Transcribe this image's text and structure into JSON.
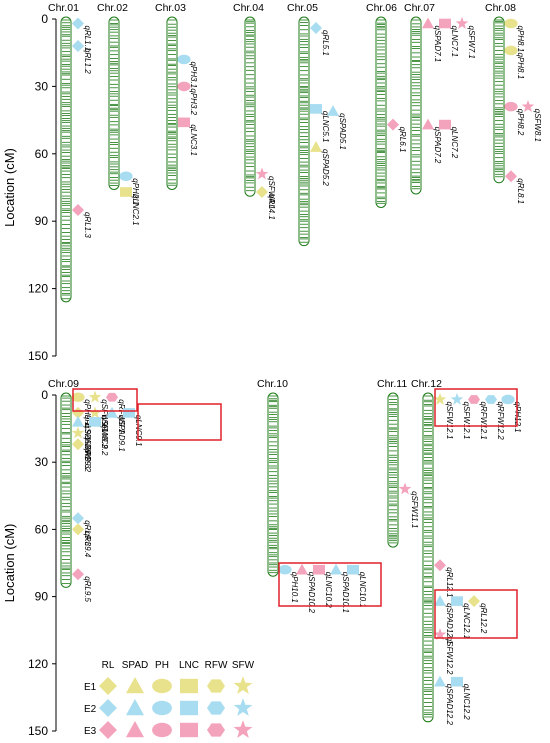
{
  "ylabel": "Location (cM)",
  "yticks": [
    0,
    30,
    60,
    90,
    120,
    150
  ],
  "colors": {
    "E1": "#e8e28c",
    "E2": "#a8dcf0",
    "E3": "#f4a3bc",
    "chromosome_band": "#1c7a16",
    "highlight_box": "#e0202a"
  },
  "legend": {
    "columns": [
      "RL",
      "SPAD",
      "PH",
      "LNC",
      "RFW",
      "SFW"
    ],
    "rows": [
      "E1",
      "E2",
      "E3"
    ],
    "shapes": [
      "diamond",
      "triangle",
      "ellipse",
      "rect",
      "hexagon",
      "star"
    ]
  },
  "chromosomes": [
    {
      "name": "Chr.01",
      "length": 125,
      "panel": 1
    },
    {
      "name": "Chr.02",
      "length": 75,
      "panel": 1
    },
    {
      "name": "Chr.03",
      "length": 75,
      "panel": 1
    },
    {
      "name": "Chr.04",
      "length": 78,
      "panel": 1
    },
    {
      "name": "Chr.05",
      "length": 100,
      "panel": 1
    },
    {
      "name": "Chr.06",
      "length": 83,
      "panel": 1
    },
    {
      "name": "Chr.07",
      "length": 77,
      "panel": 1
    },
    {
      "name": "Chr.08",
      "length": 72,
      "panel": 1
    },
    {
      "name": "Chr.09",
      "length": 85,
      "panel": 2
    },
    {
      "name": "Chr.10",
      "length": 80,
      "panel": 2
    },
    {
      "name": "Chr.11",
      "length": 67,
      "panel": 2
    },
    {
      "name": "Chr.12",
      "length": 145,
      "panel": 2
    }
  ],
  "qtls": [
    {
      "name": "qRL1.1",
      "chr": "Chr.01",
      "pos": 2,
      "trait": "RL",
      "env": "E2"
    },
    {
      "name": "qRL1.2",
      "chr": "Chr.01",
      "pos": 12,
      "trait": "RL",
      "env": "E2"
    },
    {
      "name": "qRL1.3",
      "chr": "Chr.01",
      "pos": 85,
      "trait": "RL",
      "env": "E3"
    },
    {
      "name": "qPH2.1",
      "chr": "Chr.02",
      "pos": 70,
      "trait": "PH",
      "env": "E2"
    },
    {
      "name": "qLNC2.1",
      "chr": "Chr.02",
      "pos": 77,
      "trait": "LNC",
      "env": "E1"
    },
    {
      "name": "qPH3.1",
      "chr": "Chr.03",
      "pos": 18,
      "trait": "PH",
      "env": "E2"
    },
    {
      "name": "qPH3.2",
      "chr": "Chr.03",
      "pos": 30,
      "trait": "PH",
      "env": "E3"
    },
    {
      "name": "qLNC3.1",
      "chr": "Chr.03",
      "pos": 46,
      "trait": "LNC",
      "env": "E3"
    },
    {
      "name": "qSFW4.1",
      "chr": "Chr.04",
      "pos": 69,
      "trait": "SFW",
      "env": "E3"
    },
    {
      "name": "qRL4.1",
      "chr": "Chr.04",
      "pos": 77,
      "trait": "RL",
      "env": "E1"
    },
    {
      "name": "qRL5.1",
      "chr": "Chr.05",
      "pos": 4,
      "trait": "RL",
      "env": "E2"
    },
    {
      "name": "qLNC5.1",
      "chr": "Chr.05",
      "pos": 40,
      "trait": "LNC",
      "env": "E2"
    },
    {
      "name": "qSPAD5.1",
      "chr": "Chr.05",
      "pos": 41,
      "trait": "SPAD",
      "env": "E2"
    },
    {
      "name": "qSPAD5.2",
      "chr": "Chr.05",
      "pos": 57,
      "trait": "SPAD",
      "env": "E1"
    },
    {
      "name": "qRL6.1",
      "chr": "Chr.06",
      "pos": 47,
      "trait": "RL",
      "env": "E3"
    },
    {
      "name": "qSPAD7.1",
      "chr": "Chr.07",
      "pos": 2,
      "trait": "SPAD",
      "env": "E3"
    },
    {
      "name": "qLNC7.1",
      "chr": "Chr.07",
      "pos": 2,
      "trait": "LNC",
      "env": "E3"
    },
    {
      "name": "qSFW7.1",
      "chr": "Chr.07",
      "pos": 2,
      "trait": "SFW",
      "env": "E3"
    },
    {
      "name": "qSPAD7.2",
      "chr": "Chr.07",
      "pos": 47,
      "trait": "SPAD",
      "env": "E3"
    },
    {
      "name": "qLNC7.2",
      "chr": "Chr.07",
      "pos": 47,
      "trait": "LNC",
      "env": "E3"
    },
    {
      "name": "qPH8.1",
      "chr": "Chr.08",
      "pos": 2,
      "trait": "PH",
      "env": "E1"
    },
    {
      "name": "qPH8.1",
      "chr": "Chr.08",
      "pos": 14,
      "trait": "PH",
      "env": "E1"
    },
    {
      "name": "qPH8.2",
      "chr": "Chr.08",
      "pos": 39,
      "trait": "PH",
      "env": "E3"
    },
    {
      "name": "qSFW8.1",
      "chr": "Chr.08",
      "pos": 39,
      "trait": "SFW",
      "env": "E3"
    },
    {
      "name": "qRL8.1",
      "chr": "Chr.08",
      "pos": 70,
      "trait": "RL",
      "env": "E3"
    },
    {
      "name": "qPH9.1",
      "chr": "Chr.09",
      "pos": 1,
      "trait": "PH",
      "env": "E1"
    },
    {
      "name": "qSFW9.1",
      "chr": "Chr.09",
      "pos": 1,
      "trait": "SFW",
      "env": "E1"
    },
    {
      "name": "qRFW9.1",
      "chr": "Chr.09",
      "pos": 1,
      "trait": "RFW",
      "env": "E3"
    },
    {
      "name": "qRL9.1",
      "chr": "Chr.09",
      "pos": 8,
      "trait": "RL",
      "env": "E1"
    },
    {
      "name": "qSFW9.2",
      "chr": "Chr.09",
      "pos": 8,
      "trait": "SFW",
      "env": "E1"
    },
    {
      "name": "qSPAD9.1",
      "chr": "Chr.09",
      "pos": 8,
      "trait": "SPAD",
      "env": "E2"
    },
    {
      "name": "qLNC9.1",
      "chr": "Chr.09",
      "pos": 8,
      "trait": "LNC",
      "env": "E2"
    },
    {
      "name": "qSPAD9.2",
      "chr": "Chr.09",
      "pos": 12,
      "trait": "SPAD",
      "env": "E2"
    },
    {
      "name": "qLNC9.2",
      "chr": "Chr.09",
      "pos": 12,
      "trait": "LNC",
      "env": "E2"
    },
    {
      "name": "qSFW9.3",
      "chr": "Chr.09",
      "pos": 17,
      "trait": "SFW",
      "env": "E1"
    },
    {
      "name": "qRL9.2",
      "chr": "Chr.09",
      "pos": 22,
      "trait": "RL",
      "env": "E1"
    },
    {
      "name": "qRL9.3",
      "chr": "Chr.09",
      "pos": 55,
      "trait": "RL",
      "env": "E2"
    },
    {
      "name": "qRL9.4",
      "chr": "Chr.09",
      "pos": 60,
      "trait": "RL",
      "env": "E1"
    },
    {
      "name": "qRL9.5",
      "chr": "Chr.09",
      "pos": 80,
      "trait": "RL",
      "env": "E3"
    },
    {
      "name": "qPH10.1",
      "chr": "Chr.10",
      "pos": 78,
      "trait": "PH",
      "env": "E2"
    },
    {
      "name": "qSPAD10.2",
      "chr": "Chr.10",
      "pos": 78,
      "trait": "SPAD",
      "env": "E3"
    },
    {
      "name": "qLNC10.2",
      "chr": "Chr.10",
      "pos": 78,
      "trait": "LNC",
      "env": "E3"
    },
    {
      "name": "qSPAD10.1",
      "chr": "Chr.10",
      "pos": 78,
      "trait": "SPAD",
      "env": "E2"
    },
    {
      "name": "qLNC10.1",
      "chr": "Chr.10",
      "pos": 78,
      "trait": "LNC",
      "env": "E2"
    },
    {
      "name": "qSFW11.1",
      "chr": "Chr.11",
      "pos": 42,
      "trait": "SFW",
      "env": "E3"
    },
    {
      "name": "qSFW12.1",
      "chr": "Chr.12",
      "pos": 2,
      "trait": "SFW",
      "env": "E1"
    },
    {
      "name": "qSFW12.1",
      "chr": "Chr.12",
      "pos": 2,
      "trait": "SFW",
      "env": "E2"
    },
    {
      "name": "qRFW12.1",
      "chr": "Chr.12",
      "pos": 2,
      "trait": "RFW",
      "env": "E3"
    },
    {
      "name": "qRFW12.2",
      "chr": "Chr.12",
      "pos": 2,
      "trait": "RFW",
      "env": "E2"
    },
    {
      "name": "qPH12.1",
      "chr": "Chr.12",
      "pos": 2,
      "trait": "PH",
      "env": "E2"
    },
    {
      "name": "qRL12.1",
      "chr": "Chr.12",
      "pos": 76,
      "trait": "RL",
      "env": "E3"
    },
    {
      "name": "qSPAD12.1",
      "chr": "Chr.12",
      "pos": 92,
      "trait": "SPAD",
      "env": "E2"
    },
    {
      "name": "qLNC12.1",
      "chr": "Chr.12",
      "pos": 92,
      "trait": "LNC",
      "env": "E2"
    },
    {
      "name": "qRL12.2",
      "chr": "Chr.12",
      "pos": 92,
      "trait": "RL",
      "env": "E1"
    },
    {
      "name": "qSFW12.2",
      "chr": "Chr.12",
      "pos": 107,
      "trait": "SFW",
      "env": "E3"
    },
    {
      "name": "qSPAD12.2",
      "chr": "Chr.12",
      "pos": 128,
      "trait": "SPAD",
      "env": "E2"
    },
    {
      "name": "qLNC12.2",
      "chr": "Chr.12",
      "pos": 128,
      "trait": "LNC",
      "env": "E2"
    }
  ]
}
